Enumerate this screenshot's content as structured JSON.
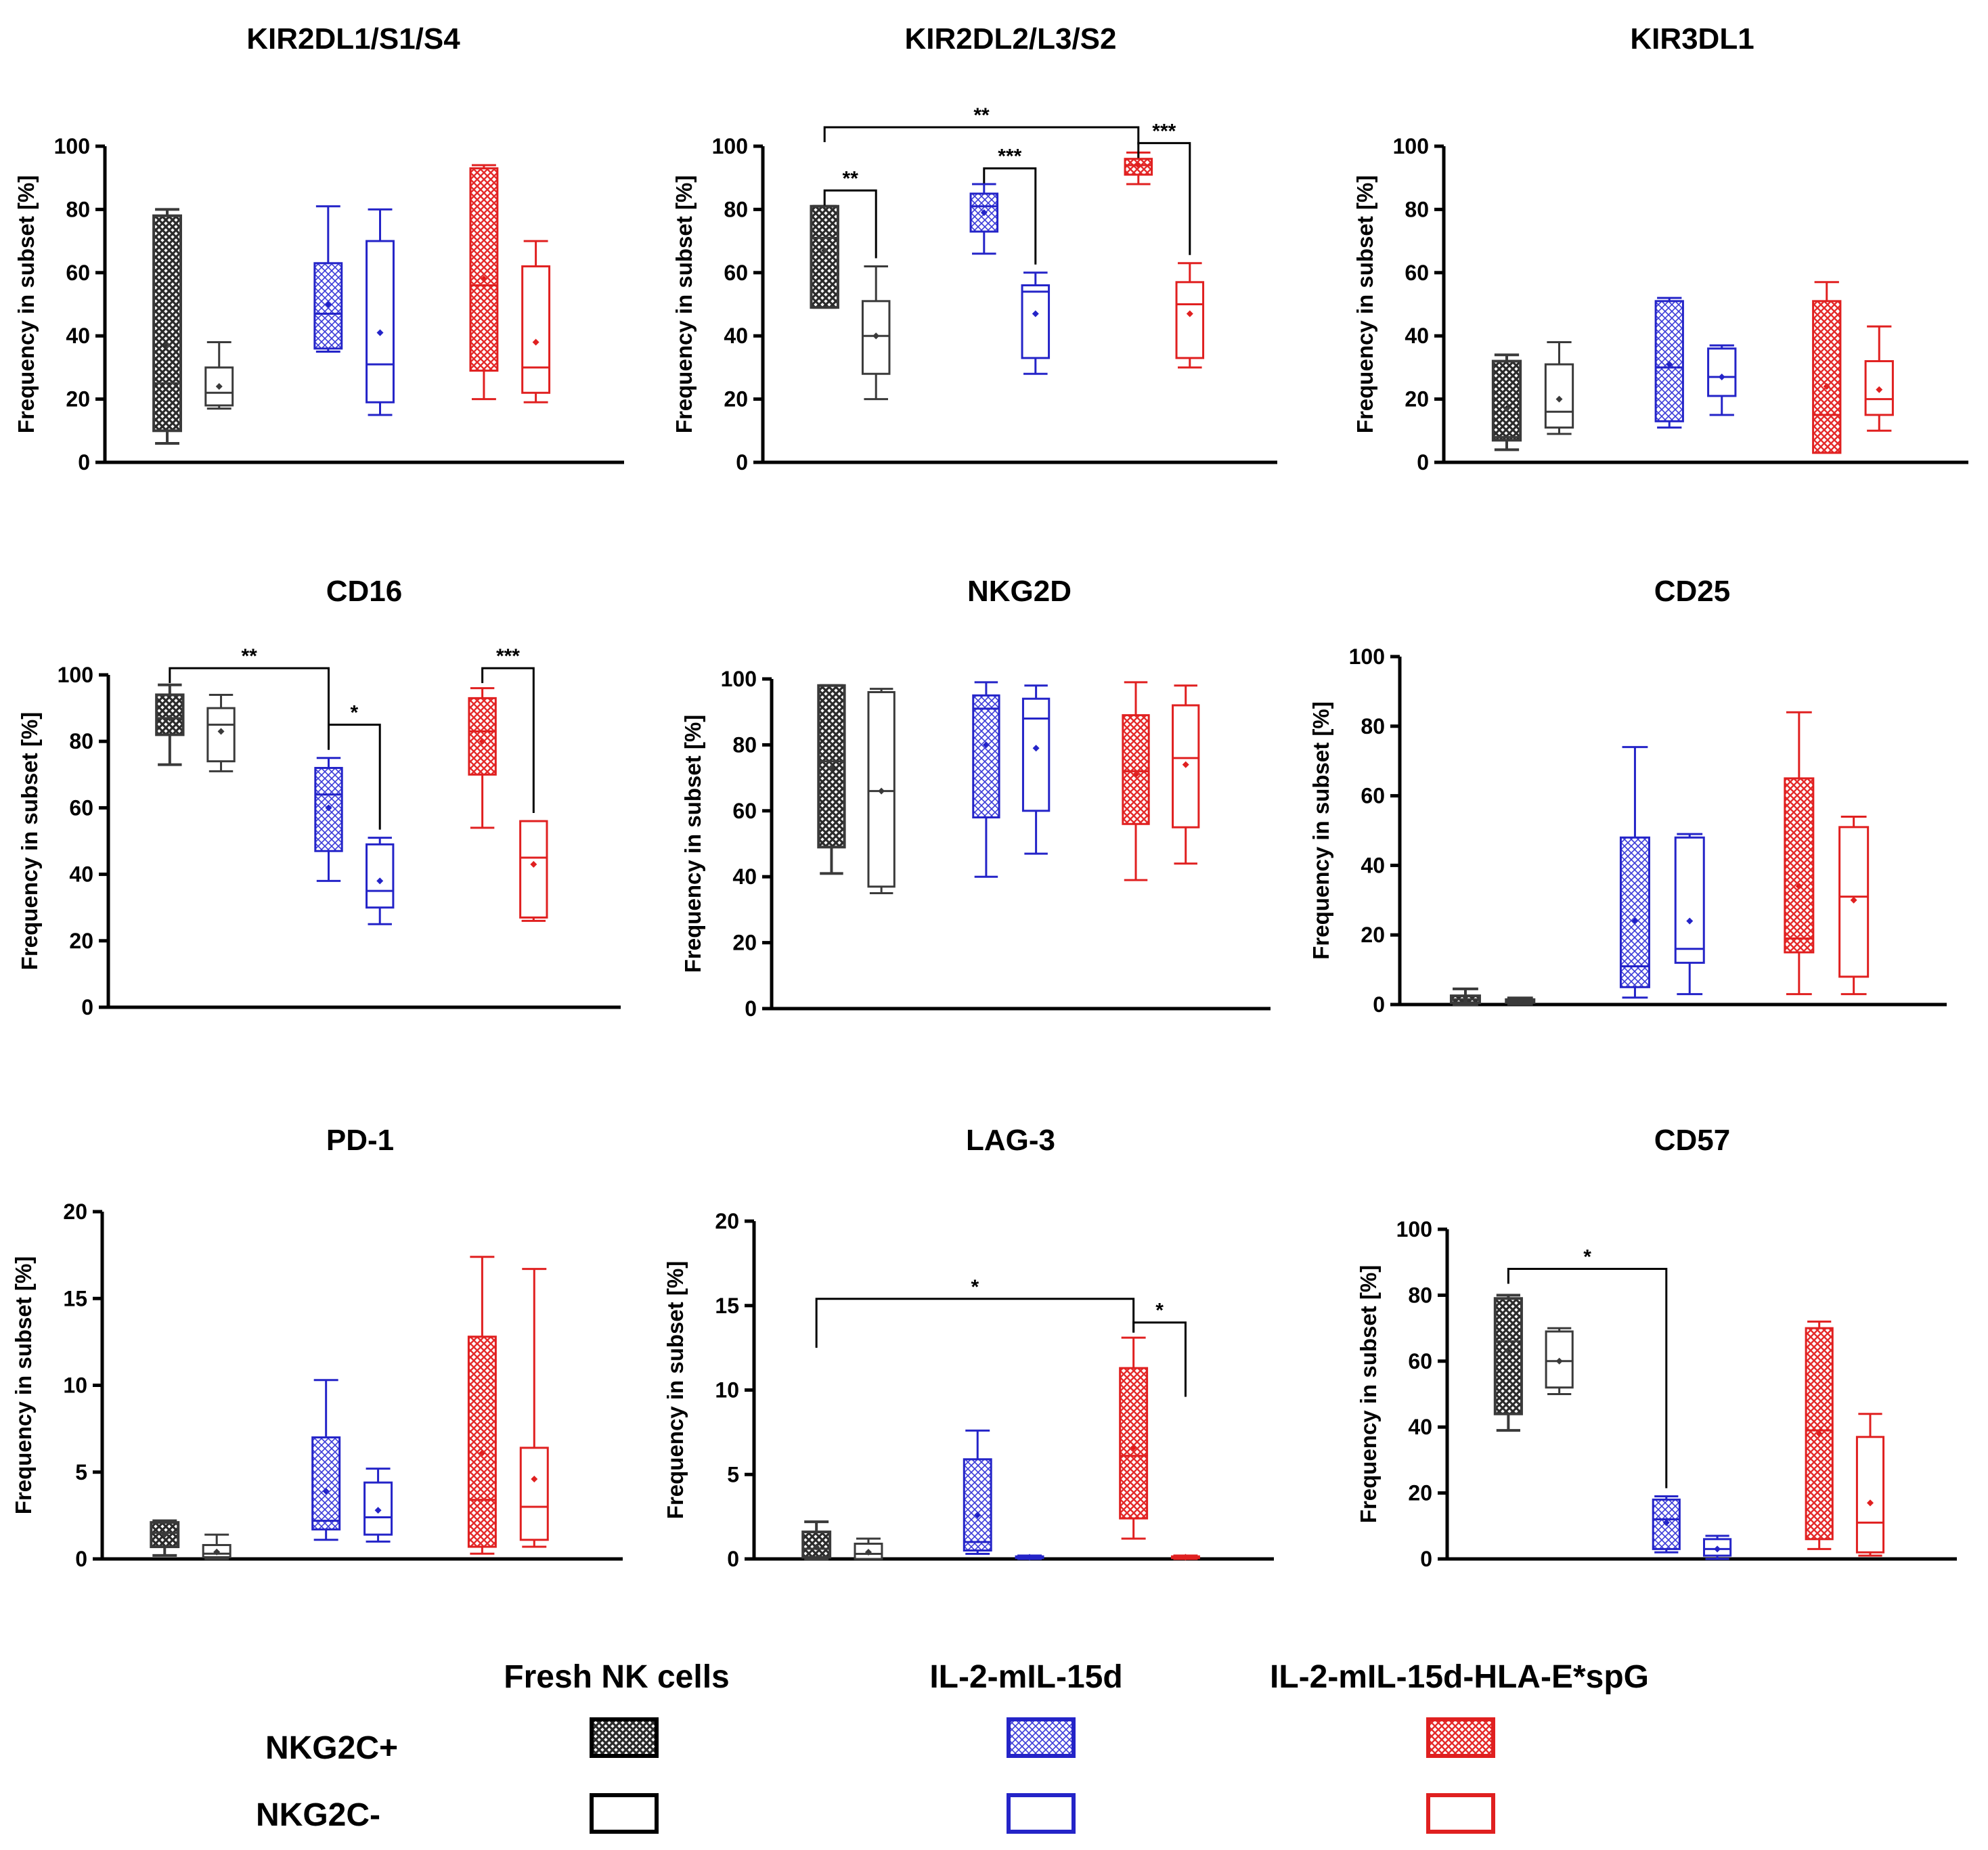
{
  "colors": {
    "fresh": "#3a3a3a",
    "il2": "#2424c8",
    "hlae": "#e02020"
  },
  "legend": {
    "groups": [
      "Fresh NK cells",
      "IL-2-mIL-15d",
      "IL-2-mIL-15d-HLA-E*spG"
    ],
    "rows": [
      "NKG2C+",
      "NKG2C-"
    ]
  },
  "chart_data": [
    {
      "type": "box",
      "title": "KIR2DL1/S1/S4",
      "ylabel": "Frequency in subset [%]",
      "ylim": [
        0,
        100
      ],
      "yticks": [
        "0",
        "20",
        "40",
        "60",
        "80",
        "100"
      ],
      "boxes": [
        {
          "group": "Fresh NK cells",
          "subset": "NKG2C+",
          "min": 6,
          "q1": 10,
          "median": 25,
          "q3": 78,
          "max": 80,
          "mean": 37
        },
        {
          "group": "Fresh NK cells",
          "subset": "NKG2C-",
          "min": 17,
          "q1": 18,
          "median": 22,
          "q3": 30,
          "max": 38,
          "mean": 24
        },
        {
          "group": "IL-2-mIL-15d",
          "subset": "NKG2C+",
          "min": 35,
          "q1": 36,
          "median": 47,
          "q3": 63,
          "max": 81,
          "mean": 50
        },
        {
          "group": "IL-2-mIL-15d",
          "subset": "NKG2C-",
          "min": 15,
          "q1": 19,
          "median": 31,
          "q3": 70,
          "max": 80,
          "mean": 41
        },
        {
          "group": "IL-2-mIL-15d-HLA-E*spG",
          "subset": "NKG2C+",
          "min": 20,
          "q1": 29,
          "median": 56,
          "q3": 93,
          "max": 94,
          "mean": 58
        },
        {
          "group": "IL-2-mIL-15d-HLA-E*spG",
          "subset": "NKG2C-",
          "min": 19,
          "q1": 22,
          "median": 30,
          "q3": 62,
          "max": 70,
          "mean": 38
        }
      ],
      "significance": []
    },
    {
      "type": "box",
      "title": "KIR2DL2/L3/S2",
      "ylabel": "Frequency in subset [%]",
      "ylim": [
        0,
        100
      ],
      "yticks": [
        "0",
        "20",
        "40",
        "60",
        "80",
        "100"
      ],
      "boxes": [
        {
          "group": "Fresh NK cells",
          "subset": "NKG2C+",
          "min": 49,
          "q1": 49,
          "median": 71,
          "q3": 81,
          "max": 81,
          "mean": 67
        },
        {
          "group": "Fresh NK cells",
          "subset": "NKG2C-",
          "min": 20,
          "q1": 28,
          "median": 40,
          "q3": 51,
          "max": 62,
          "mean": 40
        },
        {
          "group": "IL-2-mIL-15d",
          "subset": "NKG2C+",
          "min": 66,
          "q1": 73,
          "median": 81,
          "q3": 85,
          "max": 88,
          "mean": 79
        },
        {
          "group": "IL-2-mIL-15d",
          "subset": "NKG2C-",
          "min": 28,
          "q1": 33,
          "median": 54,
          "q3": 56,
          "max": 60,
          "mean": 47
        },
        {
          "group": "IL-2-mIL-15d-HLA-E*spG",
          "subset": "NKG2C+",
          "min": 88,
          "q1": 91,
          "median": 94,
          "q3": 96,
          "max": 98,
          "mean": 94
        },
        {
          "group": "IL-2-mIL-15d-HLA-E*spG",
          "subset": "NKG2C-",
          "min": 30,
          "q1": 33,
          "median": 50,
          "q3": 57,
          "max": 63,
          "mean": 47
        }
      ],
      "significance": [
        {
          "from": 0,
          "to": 1,
          "label": "**",
          "y": 86
        },
        {
          "from": 2,
          "to": 3,
          "label": "***",
          "y": 93
        },
        {
          "from": 4,
          "to": 5,
          "label": "***",
          "y": 101
        },
        {
          "from": 0,
          "to": 4,
          "label": "**",
          "y": 106
        }
      ]
    },
    {
      "type": "box",
      "title": "KIR3DL1",
      "ylabel": "Frequency in subset [%]",
      "ylim": [
        0,
        100
      ],
      "yticks": [
        "0",
        "20",
        "40",
        "60",
        "80",
        "100"
      ],
      "boxes": [
        {
          "group": "Fresh NK cells",
          "subset": "NKG2C+",
          "min": 4,
          "q1": 7,
          "median": 8,
          "q3": 32,
          "max": 34,
          "mean": 17
        },
        {
          "group": "Fresh NK cells",
          "subset": "NKG2C-",
          "min": 9,
          "q1": 11,
          "median": 16,
          "q3": 31,
          "max": 38,
          "mean": 20
        },
        {
          "group": "IL-2-mIL-15d",
          "subset": "NKG2C+",
          "min": 11,
          "q1": 13,
          "median": 30,
          "q3": 51,
          "max": 52,
          "mean": 31
        },
        {
          "group": "IL-2-mIL-15d",
          "subset": "NKG2C-",
          "min": 15,
          "q1": 21,
          "median": 27,
          "q3": 36,
          "max": 37,
          "mean": 27
        },
        {
          "group": "IL-2-mIL-15d-HLA-E*spG",
          "subset": "NKG2C+",
          "min": 3,
          "q1": 3,
          "median": 15,
          "q3": 51,
          "max": 57,
          "mean": 24
        },
        {
          "group": "IL-2-mIL-15d-HLA-E*spG",
          "subset": "NKG2C-",
          "min": 10,
          "q1": 15,
          "median": 20,
          "q3": 32,
          "max": 43,
          "mean": 23
        }
      ],
      "significance": []
    },
    {
      "type": "box",
      "title": "CD16",
      "ylabel": "Frequency in subset [%]",
      "ylim": [
        0,
        100
      ],
      "yticks": [
        "0",
        "20",
        "40",
        "60",
        "80",
        "100"
      ],
      "boxes": [
        {
          "group": "Fresh NK cells",
          "subset": "NKG2C+",
          "min": 73,
          "q1": 82,
          "median": 87,
          "q3": 94,
          "max": 97,
          "mean": 87
        },
        {
          "group": "Fresh NK cells",
          "subset": "NKG2C-",
          "min": 71,
          "q1": 74,
          "median": 85,
          "q3": 90,
          "max": 94,
          "mean": 83
        },
        {
          "group": "IL-2-mIL-15d",
          "subset": "NKG2C+",
          "min": 38,
          "q1": 47,
          "median": 64,
          "q3": 72,
          "max": 75,
          "mean": 60
        },
        {
          "group": "IL-2-mIL-15d",
          "subset": "NKG2C-",
          "min": 25,
          "q1": 30,
          "median": 35,
          "q3": 49,
          "max": 51,
          "mean": 38
        },
        {
          "group": "IL-2-mIL-15d-HLA-E*spG",
          "subset": "NKG2C+",
          "min": 54,
          "q1": 70,
          "median": 83,
          "q3": 93,
          "max": 96,
          "mean": 80
        },
        {
          "group": "IL-2-mIL-15d-HLA-E*spG",
          "subset": "NKG2C-",
          "min": 26,
          "q1": 27,
          "median": 45,
          "q3": 56,
          "max": 56,
          "mean": 43
        }
      ],
      "significance": [
        {
          "from": 0,
          "to": 2,
          "label": "**",
          "y": 102
        },
        {
          "from": 2,
          "to": 3,
          "label": "*",
          "y": 85
        },
        {
          "from": 4,
          "to": 5,
          "label": "***",
          "y": 102
        }
      ]
    },
    {
      "type": "box",
      "title": "NKG2D",
      "ylabel": "Frequency in subset [%]",
      "ylim": [
        0,
        100
      ],
      "yticks": [
        "0",
        "20",
        "40",
        "60",
        "80",
        "100"
      ],
      "boxes": [
        {
          "group": "Fresh NK cells",
          "subset": "NKG2C+",
          "min": 41,
          "q1": 49,
          "median": 75,
          "q3": 98,
          "max": 98,
          "mean": 73
        },
        {
          "group": "Fresh NK cells",
          "subset": "NKG2C-",
          "min": 35,
          "q1": 37,
          "median": 66,
          "q3": 96,
          "max": 97,
          "mean": 66
        },
        {
          "group": "IL-2-mIL-15d",
          "subset": "NKG2C+",
          "min": 40,
          "q1": 58,
          "median": 91,
          "q3": 95,
          "max": 99,
          "mean": 80
        },
        {
          "group": "IL-2-mIL-15d",
          "subset": "NKG2C-",
          "min": 47,
          "q1": 60,
          "median": 88,
          "q3": 94,
          "max": 98,
          "mean": 79
        },
        {
          "group": "IL-2-mIL-15d-HLA-E*spG",
          "subset": "NKG2C+",
          "min": 39,
          "q1": 56,
          "median": 72,
          "q3": 89,
          "max": 99,
          "mean": 71
        },
        {
          "group": "IL-2-mIL-15d-HLA-E*spG",
          "subset": "NKG2C-",
          "min": 44,
          "q1": 55,
          "median": 76,
          "q3": 92,
          "max": 98,
          "mean": 74
        }
      ],
      "significance": []
    },
    {
      "type": "box",
      "title": "CD25",
      "ylabel": "Frequency in subset [%]",
      "ylim": [
        0,
        100
      ],
      "yticks": [
        "0",
        "20",
        "40",
        "60",
        "80",
        "100"
      ],
      "boxes": [
        {
          "group": "Fresh NK cells",
          "subset": "NKG2C+",
          "min": 0,
          "q1": 0.5,
          "median": 1.5,
          "q3": 2.5,
          "max": 4.5,
          "mean": 1.5
        },
        {
          "group": "Fresh NK cells",
          "subset": "NKG2C-",
          "min": 0,
          "q1": 0.5,
          "median": 1,
          "q3": 1.5,
          "max": 2,
          "mean": 1
        },
        {
          "group": "IL-2-mIL-15d",
          "subset": "NKG2C+",
          "min": 2,
          "q1": 5,
          "median": 11,
          "q3": 48,
          "max": 74,
          "mean": 24
        },
        {
          "group": "IL-2-mIL-15d",
          "subset": "NKG2C-",
          "min": 3,
          "q1": 12,
          "median": 16,
          "q3": 48,
          "max": 49,
          "mean": 24
        },
        {
          "group": "IL-2-mIL-15d-HLA-E*spG",
          "subset": "NKG2C+",
          "min": 3,
          "q1": 15,
          "median": 19,
          "q3": 65,
          "max": 84,
          "mean": 34
        },
        {
          "group": "IL-2-mIL-15d-HLA-E*spG",
          "subset": "NKG2C-",
          "min": 3,
          "q1": 8,
          "median": 31,
          "q3": 51,
          "max": 54,
          "mean": 30
        }
      ],
      "significance": []
    },
    {
      "type": "box",
      "title": "PD-1",
      "ylabel": "Frequency in subset [%]",
      "ylim": [
        0,
        20
      ],
      "yticks": [
        "0",
        "5",
        "10",
        "15",
        "20"
      ],
      "boxes": [
        {
          "group": "Fresh NK cells",
          "subset": "NKG2C+",
          "min": 0.2,
          "q1": 0.7,
          "median": 1.5,
          "q3": 2.1,
          "max": 2.2,
          "mean": 1.4
        },
        {
          "group": "Fresh NK cells",
          "subset": "NKG2C-",
          "min": 0,
          "q1": 0.1,
          "median": 0.3,
          "q3": 0.8,
          "max": 1.4,
          "mean": 0.4
        },
        {
          "group": "IL-2-mIL-15d",
          "subset": "NKG2C+",
          "min": 1.1,
          "q1": 1.7,
          "median": 2.2,
          "q3": 7,
          "max": 10.3,
          "mean": 3.9
        },
        {
          "group": "IL-2-mIL-15d",
          "subset": "NKG2C-",
          "min": 1,
          "q1": 1.4,
          "median": 2.4,
          "q3": 4.4,
          "max": 5.2,
          "mean": 2.8
        },
        {
          "group": "IL-2-mIL-15d-HLA-E*spG",
          "subset": "NKG2C+",
          "min": 0.3,
          "q1": 0.7,
          "median": 3.4,
          "q3": 12.8,
          "max": 17.4,
          "mean": 6.1
        },
        {
          "group": "IL-2-mIL-15d-HLA-E*spG",
          "subset": "NKG2C-",
          "min": 0.7,
          "q1": 1.1,
          "median": 3,
          "q3": 6.4,
          "max": 16.7,
          "mean": 4.6
        }
      ],
      "significance": []
    },
    {
      "type": "box",
      "title": "LAG-3",
      "ylabel": "Frequency in subset [%]",
      "ylim": [
        0,
        20
      ],
      "yticks": [
        "0",
        "5",
        "10",
        "15",
        "20"
      ],
      "boxes": [
        {
          "group": "Fresh NK cells",
          "subset": "NKG2C+",
          "min": 0,
          "q1": 0.1,
          "median": 0.6,
          "q3": 1.6,
          "max": 2.2,
          "mean": 0.7
        },
        {
          "group": "Fresh NK cells",
          "subset": "NKG2C-",
          "min": 0,
          "q1": 0,
          "median": 0.3,
          "q3": 0.9,
          "max": 1.2,
          "mean": 0.4
        },
        {
          "group": "IL-2-mIL-15d",
          "subset": "NKG2C+",
          "min": 0.3,
          "q1": 0.5,
          "median": 1,
          "q3": 5.9,
          "max": 7.6,
          "mean": 2.6
        },
        {
          "group": "IL-2-mIL-15d",
          "subset": "NKG2C-",
          "min": 0,
          "q1": 0.05,
          "median": 0.1,
          "q3": 0.15,
          "max": 0.2,
          "mean": 0.1
        },
        {
          "group": "IL-2-mIL-15d-HLA-E*spG",
          "subset": "NKG2C+",
          "min": 1.2,
          "q1": 2.4,
          "median": 6.1,
          "q3": 11.3,
          "max": 13.1,
          "mean": 6.6
        },
        {
          "group": "IL-2-mIL-15d-HLA-E*spG",
          "subset": "NKG2C-",
          "min": 0,
          "q1": 0.05,
          "median": 0.1,
          "q3": 0.15,
          "max": 0.2,
          "mean": 0.1
        }
      ],
      "significance": [
        {
          "from": 0,
          "to": 4,
          "label": "*",
          "y": 15.4,
          "drop_left": 12.5,
          "drop_right": 13.4
        },
        {
          "from": 4,
          "to": 5,
          "label": "*",
          "y": 14.0,
          "drop_left": 13.4,
          "drop_right": 9.6
        }
      ]
    },
    {
      "type": "box",
      "title": "CD57",
      "ylabel": "Frequency in subset [%]",
      "ylim": [
        0,
        100
      ],
      "yticks": [
        "0",
        "20",
        "40",
        "60",
        "80",
        "100"
      ],
      "boxes": [
        {
          "group": "Fresh NK cells",
          "subset": "NKG2C+",
          "min": 39,
          "q1": 44,
          "median": 66,
          "q3": 79,
          "max": 80,
          "mean": 63
        },
        {
          "group": "Fresh NK cells",
          "subset": "NKG2C-",
          "min": 50,
          "q1": 52,
          "median": 60,
          "q3": 69,
          "max": 70,
          "mean": 60
        },
        {
          "group": "IL-2-mIL-15d",
          "subset": "NKG2C+",
          "min": 2,
          "q1": 3,
          "median": 12,
          "q3": 18,
          "max": 19,
          "mean": 11
        },
        {
          "group": "IL-2-mIL-15d",
          "subset": "NKG2C-",
          "min": 0,
          "q1": 1,
          "median": 3,
          "q3": 6,
          "max": 7,
          "mean": 3
        },
        {
          "group": "IL-2-mIL-15d-HLA-E*spG",
          "subset": "NKG2C+",
          "min": 3,
          "q1": 6,
          "median": 39,
          "q3": 70,
          "max": 72,
          "mean": 38
        },
        {
          "group": "IL-2-mIL-15d-HLA-E*spG",
          "subset": "NKG2C-",
          "min": 1,
          "q1": 2,
          "median": 11,
          "q3": 37,
          "max": 44,
          "mean": 17
        }
      ],
      "significance": [
        {
          "from": 0,
          "to": 2,
          "label": "*",
          "y": 88
        }
      ]
    }
  ]
}
